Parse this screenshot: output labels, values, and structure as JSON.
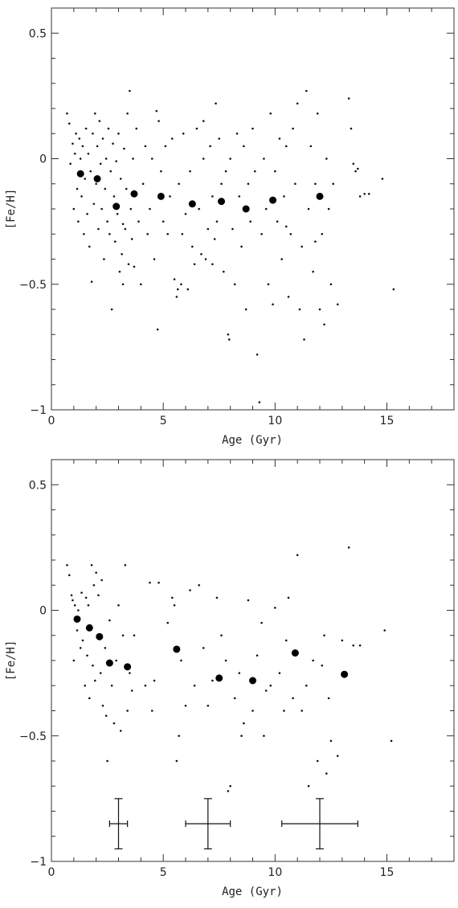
{
  "chart_data": [
    {
      "type": "scatter",
      "xlabel": "Age (Gyr)",
      "ylabel": "[Fe/H]",
      "xlim": [
        0,
        18
      ],
      "ylim": [
        -1,
        0.6
      ],
      "xticks": [
        0,
        5,
        10,
        15
      ],
      "yticks": [
        0.5,
        0,
        -0.5,
        -1
      ],
      "xtick_labels": [
        "0",
        "5",
        "10",
        "15"
      ],
      "ytick_labels": [
        "0.5",
        "0",
        "−0.5",
        "−1"
      ],
      "mean_points": [
        {
          "x": 1.3,
          "y": -0.06
        },
        {
          "x": 2.05,
          "y": -0.08
        },
        {
          "x": 2.9,
          "y": -0.19
        },
        {
          "x": 3.7,
          "y": -0.14
        },
        {
          "x": 4.9,
          "y": -0.15
        },
        {
          "x": 6.3,
          "y": -0.18
        },
        {
          "x": 7.6,
          "y": -0.17
        },
        {
          "x": 8.7,
          "y": -0.2
        },
        {
          "x": 9.9,
          "y": -0.165
        },
        {
          "x": 12.0,
          "y": -0.15
        }
      ],
      "points": [
        [
          0.7,
          0.18
        ],
        [
          0.8,
          0.14
        ],
        [
          0.85,
          -0.02
        ],
        [
          0.95,
          0.06
        ],
        [
          1.0,
          -0.2
        ],
        [
          1.05,
          0.02
        ],
        [
          1.1,
          0.1
        ],
        [
          1.15,
          -0.12
        ],
        [
          1.2,
          -0.25
        ],
        [
          1.25,
          0.08
        ],
        [
          1.3,
          0.0
        ],
        [
          1.35,
          -0.15
        ],
        [
          1.4,
          0.05
        ],
        [
          1.45,
          -0.3
        ],
        [
          1.5,
          -0.08
        ],
        [
          1.55,
          0.12
        ],
        [
          1.6,
          -0.22
        ],
        [
          1.65,
          0.02
        ],
        [
          1.7,
          -0.35
        ],
        [
          1.75,
          -0.05
        ],
        [
          1.8,
          -0.49
        ],
        [
          1.85,
          0.1
        ],
        [
          1.9,
          -0.18
        ],
        [
          1.95,
          0.18
        ],
        [
          2.0,
          -0.1
        ],
        [
          2.05,
          0.05
        ],
        [
          2.1,
          -0.28
        ],
        [
          2.15,
          0.15
        ],
        [
          2.2,
          -0.02
        ],
        [
          2.25,
          -0.2
        ],
        [
          2.3,
          0.08
        ],
        [
          2.35,
          -0.4
        ],
        [
          2.4,
          -0.12
        ],
        [
          2.45,
          0.0
        ],
        [
          2.5,
          -0.25
        ],
        [
          2.55,
          0.12
        ],
        [
          2.6,
          -0.3
        ],
        [
          2.65,
          -0.05
        ],
        [
          2.7,
          -0.6
        ],
        [
          2.75,
          0.06
        ],
        [
          2.8,
          -0.15
        ],
        [
          2.85,
          -0.33
        ],
        [
          2.9,
          -0.01
        ],
        [
          2.95,
          -0.22
        ],
        [
          3.0,
          0.1
        ],
        [
          3.05,
          -0.45
        ],
        [
          3.1,
          -0.08
        ],
        [
          3.15,
          -0.38
        ],
        [
          3.2,
          -0.5
        ],
        [
          3.25,
          0.04
        ],
        [
          3.3,
          -0.28
        ],
        [
          3.35,
          -0.12
        ],
        [
          3.4,
          0.18
        ],
        [
          3.45,
          -0.42
        ],
        [
          3.5,
          0.27
        ],
        [
          3.55,
          -0.2
        ],
        [
          3.6,
          -0.32
        ],
        [
          3.65,
          0.0
        ],
        [
          3.7,
          -0.43
        ],
        [
          3.8,
          0.12
        ],
        [
          3.9,
          -0.25
        ],
        [
          4.0,
          -0.5
        ],
        [
          4.1,
          -0.1
        ],
        [
          4.2,
          0.05
        ],
        [
          4.3,
          -0.3
        ],
        [
          4.4,
          -0.2
        ],
        [
          4.5,
          0.0
        ],
        [
          4.6,
          -0.4
        ],
        [
          4.7,
          0.19
        ],
        [
          4.75,
          -0.68
        ],
        [
          4.8,
          0.15
        ],
        [
          4.9,
          -0.05
        ],
        [
          5.0,
          -0.25
        ],
        [
          5.1,
          0.05
        ],
        [
          5.2,
          -0.3
        ],
        [
          5.3,
          -0.15
        ],
        [
          5.4,
          0.08
        ],
        [
          5.5,
          -0.48
        ],
        [
          5.6,
          -0.55
        ],
        [
          5.65,
          -0.52
        ],
        [
          5.7,
          -0.1
        ],
        [
          5.8,
          -0.5
        ],
        [
          5.85,
          -0.3
        ],
        [
          5.9,
          0.1
        ],
        [
          6.0,
          -0.22
        ],
        [
          6.1,
          -0.52
        ],
        [
          6.2,
          -0.05
        ],
        [
          6.3,
          -0.35
        ],
        [
          6.4,
          -0.42
        ],
        [
          6.5,
          0.12
        ],
        [
          6.6,
          -0.2
        ],
        [
          6.7,
          -0.38
        ],
        [
          6.8,
          0.0
        ],
        [
          6.9,
          -0.4
        ],
        [
          7.0,
          -0.28
        ],
        [
          7.1,
          0.05
        ],
        [
          7.2,
          -0.15
        ],
        [
          7.3,
          -0.32
        ],
        [
          7.35,
          0.22
        ],
        [
          7.4,
          -0.25
        ],
        [
          7.5,
          0.08
        ],
        [
          7.6,
          -0.1
        ],
        [
          7.7,
          -0.45
        ],
        [
          7.8,
          -0.05
        ],
        [
          7.9,
          -0.7
        ],
        [
          7.95,
          -0.72
        ],
        [
          8.0,
          0.0
        ],
        [
          8.1,
          -0.28
        ],
        [
          8.2,
          -0.5
        ],
        [
          8.3,
          0.1
        ],
        [
          8.4,
          -0.15
        ],
        [
          8.5,
          -0.35
        ],
        [
          8.6,
          0.05
        ],
        [
          8.7,
          -0.6
        ],
        [
          8.8,
          -0.1
        ],
        [
          8.9,
          -0.25
        ],
        [
          9.0,
          0.12
        ],
        [
          9.1,
          -0.05
        ],
        [
          9.2,
          -0.78
        ],
        [
          9.3,
          -0.97
        ],
        [
          9.4,
          -0.3
        ],
        [
          9.5,
          0.0
        ],
        [
          9.6,
          -0.2
        ],
        [
          9.7,
          -0.5
        ],
        [
          9.8,
          0.18
        ],
        [
          9.9,
          -0.58
        ],
        [
          10.0,
          -0.05
        ],
        [
          10.1,
          -0.25
        ],
        [
          10.2,
          0.08
        ],
        [
          10.3,
          -0.4
        ],
        [
          10.4,
          -0.15
        ],
        [
          10.5,
          0.05
        ],
        [
          10.6,
          -0.55
        ],
        [
          10.7,
          -0.3
        ],
        [
          10.8,
          0.12
        ],
        [
          10.9,
          -0.1
        ],
        [
          11.0,
          0.22
        ],
        [
          11.1,
          -0.6
        ],
        [
          11.2,
          -0.35
        ],
        [
          11.3,
          -0.72
        ],
        [
          11.4,
          0.27
        ],
        [
          11.5,
          -0.2
        ],
        [
          11.6,
          0.05
        ],
        [
          11.7,
          -0.45
        ],
        [
          11.8,
          -0.1
        ],
        [
          11.9,
          0.18
        ],
        [
          12.0,
          -0.6
        ],
        [
          12.1,
          -0.3
        ],
        [
          12.2,
          -0.66
        ],
        [
          12.3,
          0.0
        ],
        [
          12.4,
          -0.2
        ],
        [
          12.5,
          -0.5
        ],
        [
          12.6,
          -0.1
        ],
        [
          12.8,
          -0.58
        ],
        [
          13.3,
          0.24
        ],
        [
          13.4,
          0.12
        ],
        [
          13.5,
          -0.02
        ],
        [
          13.6,
          -0.05
        ],
        [
          13.7,
          -0.04
        ],
        [
          13.8,
          -0.15
        ],
        [
          14.0,
          -0.14
        ],
        [
          14.2,
          -0.14
        ],
        [
          14.8,
          -0.08
        ],
        [
          15.3,
          -0.52
        ],
        [
          6.8,
          0.15
        ],
        [
          7.2,
          -0.42
        ],
        [
          8.6,
          -0.2
        ],
        [
          10.5,
          -0.27
        ],
        [
          11.8,
          -0.33
        ],
        [
          3.2,
          -0.26
        ]
      ]
    },
    {
      "type": "scatter",
      "xlabel": "Age (Gyr)",
      "ylabel": "[Fe/H]",
      "xlim": [
        0,
        18
      ],
      "ylim": [
        -1,
        0.6
      ],
      "xticks": [
        0,
        5,
        10,
        15
      ],
      "yticks": [
        0.5,
        0,
        -0.5,
        -1
      ],
      "xtick_labels": [
        "0",
        "5",
        "10",
        "15"
      ],
      "ytick_labels": [
        "0.5",
        "0",
        "−0.5",
        "−1"
      ],
      "mean_points": [
        {
          "x": 1.15,
          "y": -0.035
        },
        {
          "x": 1.7,
          "y": -0.07
        },
        {
          "x": 2.15,
          "y": -0.105
        },
        {
          "x": 2.6,
          "y": -0.21
        },
        {
          "x": 3.4,
          "y": -0.225
        },
        {
          "x": 5.6,
          "y": -0.155
        },
        {
          "x": 7.5,
          "y": -0.27
        },
        {
          "x": 9.0,
          "y": -0.28
        },
        {
          "x": 10.9,
          "y": -0.17
        },
        {
          "x": 13.1,
          "y": -0.255
        }
      ],
      "points": [
        [
          0.7,
          0.18
        ],
        [
          0.8,
          0.14
        ],
        [
          0.9,
          0.06
        ],
        [
          0.95,
          0.04
        ],
        [
          1.0,
          -0.2
        ],
        [
          1.05,
          0.02
        ],
        [
          1.15,
          -0.08
        ],
        [
          1.2,
          0.0
        ],
        [
          1.3,
          -0.15
        ],
        [
          1.35,
          0.07
        ],
        [
          1.4,
          -0.12
        ],
        [
          1.5,
          -0.3
        ],
        [
          1.55,
          0.05
        ],
        [
          1.6,
          -0.18
        ],
        [
          1.65,
          0.02
        ],
        [
          1.7,
          -0.35
        ],
        [
          1.75,
          -0.06
        ],
        [
          1.8,
          0.18
        ],
        [
          1.85,
          -0.22
        ],
        [
          1.9,
          0.1
        ],
        [
          1.95,
          -0.28
        ],
        [
          2.0,
          0.15
        ],
        [
          2.05,
          -0.1
        ],
        [
          2.1,
          0.06
        ],
        [
          2.2,
          -0.25
        ],
        [
          2.25,
          0.12
        ],
        [
          2.3,
          -0.38
        ],
        [
          2.4,
          -0.15
        ],
        [
          2.45,
          -0.42
        ],
        [
          2.5,
          -0.6
        ],
        [
          2.6,
          -0.04
        ],
        [
          2.7,
          -0.3
        ],
        [
          2.8,
          -0.45
        ],
        [
          2.9,
          -0.2
        ],
        [
          3.0,
          0.02
        ],
        [
          3.1,
          -0.48
        ],
        [
          3.2,
          -0.1
        ],
        [
          3.3,
          0.18
        ],
        [
          3.4,
          -0.4
        ],
        [
          3.5,
          -0.25
        ],
        [
          3.6,
          -0.32
        ],
        [
          3.7,
          -0.1
        ],
        [
          4.2,
          -0.3
        ],
        [
          4.4,
          0.11
        ],
        [
          4.5,
          -0.4
        ],
        [
          4.6,
          -0.28
        ],
        [
          4.8,
          0.11
        ],
        [
          5.2,
          -0.05
        ],
        [
          5.4,
          0.05
        ],
        [
          5.5,
          0.02
        ],
        [
          5.6,
          -0.6
        ],
        [
          5.7,
          -0.5
        ],
        [
          5.8,
          -0.2
        ],
        [
          6.0,
          -0.38
        ],
        [
          6.2,
          0.08
        ],
        [
          6.4,
          -0.3
        ],
        [
          6.6,
          0.1
        ],
        [
          6.8,
          -0.15
        ],
        [
          7.0,
          -0.38
        ],
        [
          7.2,
          -0.28
        ],
        [
          7.4,
          0.05
        ],
        [
          7.6,
          -0.1
        ],
        [
          7.8,
          -0.2
        ],
        [
          7.9,
          -0.72
        ],
        [
          8.0,
          -0.7
        ],
        [
          8.2,
          -0.35
        ],
        [
          8.4,
          -0.25
        ],
        [
          8.5,
          -0.5
        ],
        [
          8.6,
          -0.45
        ],
        [
          8.8,
          0.04
        ],
        [
          9.0,
          -0.4
        ],
        [
          9.2,
          -0.18
        ],
        [
          9.4,
          -0.05
        ],
        [
          9.5,
          -0.5
        ],
        [
          9.8,
          -0.3
        ],
        [
          10.0,
          0.01
        ],
        [
          10.2,
          -0.25
        ],
        [
          10.4,
          -0.4
        ],
        [
          10.6,
          0.05
        ],
        [
          10.8,
          -0.35
        ],
        [
          11.0,
          0.22
        ],
        [
          11.2,
          -0.4
        ],
        [
          11.5,
          -0.7
        ],
        [
          11.7,
          -0.2
        ],
        [
          11.9,
          -0.6
        ],
        [
          12.1,
          -0.22
        ],
        [
          12.3,
          -0.65
        ],
        [
          12.4,
          -0.35
        ],
        [
          12.5,
          -0.52
        ],
        [
          12.8,
          -0.58
        ],
        [
          13.0,
          -0.12
        ],
        [
          13.3,
          0.25
        ],
        [
          13.5,
          -0.14
        ],
        [
          13.8,
          -0.14
        ],
        [
          14.9,
          -0.08
        ],
        [
          15.2,
          -0.52
        ],
        [
          12.2,
          -0.1
        ],
        [
          11.4,
          -0.3
        ],
        [
          10.5,
          -0.12
        ],
        [
          9.6,
          -0.32
        ]
      ],
      "error_bars": [
        {
          "x": 3.0,
          "y": -0.85,
          "xerr": 0.4,
          "yerr": 0.1
        },
        {
          "x": 7.0,
          "y": -0.85,
          "xerr": 1.0,
          "yerr": 0.1
        },
        {
          "x": 12.0,
          "y": -0.85,
          "xerr": 1.7,
          "yerr": 0.1
        }
      ]
    }
  ]
}
